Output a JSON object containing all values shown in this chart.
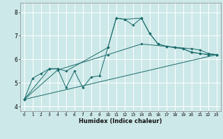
{
  "xlabel": "Humidex (Indice chaleur)",
  "bg_color": "#cde8e8",
  "line_color": "#1a6b6b",
  "grid_color": "#ffffff",
  "xlim": [
    -0.5,
    23.5
  ],
  "ylim": [
    3.8,
    8.4
  ],
  "yticks": [
    4,
    5,
    6,
    7,
    8
  ],
  "xticks": [
    0,
    1,
    2,
    3,
    4,
    5,
    6,
    7,
    8,
    9,
    10,
    11,
    12,
    13,
    14,
    15,
    16,
    17,
    18,
    19,
    20,
    21,
    22,
    23
  ],
  "series": [
    {
      "x": [
        0,
        1,
        2,
        3,
        4,
        5,
        6,
        7,
        8,
        9,
        10,
        11,
        12,
        13,
        14,
        15,
        16,
        17,
        18,
        19,
        20,
        21,
        22,
        23
      ],
      "y": [
        4.3,
        5.2,
        5.4,
        5.6,
        5.6,
        4.8,
        5.5,
        4.8,
        5.25,
        5.3,
        6.5,
        7.75,
        7.7,
        7.45,
        7.75,
        7.1,
        6.65,
        6.55,
        6.5,
        6.45,
        6.3,
        6.25,
        6.2,
        6.2
      ]
    },
    {
      "x": [
        0,
        23
      ],
      "y": [
        4.3,
        6.2
      ]
    },
    {
      "x": [
        0,
        4,
        10,
        14,
        17,
        20,
        21,
        22,
        23
      ],
      "y": [
        4.3,
        5.55,
        6.2,
        6.65,
        6.55,
        6.45,
        6.4,
        6.25,
        6.2
      ]
    },
    {
      "x": [
        0,
        3,
        4,
        5,
        10,
        11,
        12,
        14,
        15,
        16,
        17,
        18,
        19,
        20,
        21,
        22,
        23
      ],
      "y": [
        4.3,
        5.6,
        5.6,
        5.5,
        6.5,
        7.75,
        7.7,
        7.75,
        7.1,
        6.65,
        6.55,
        6.5,
        6.45,
        6.3,
        6.25,
        6.2,
        6.2
      ]
    }
  ]
}
